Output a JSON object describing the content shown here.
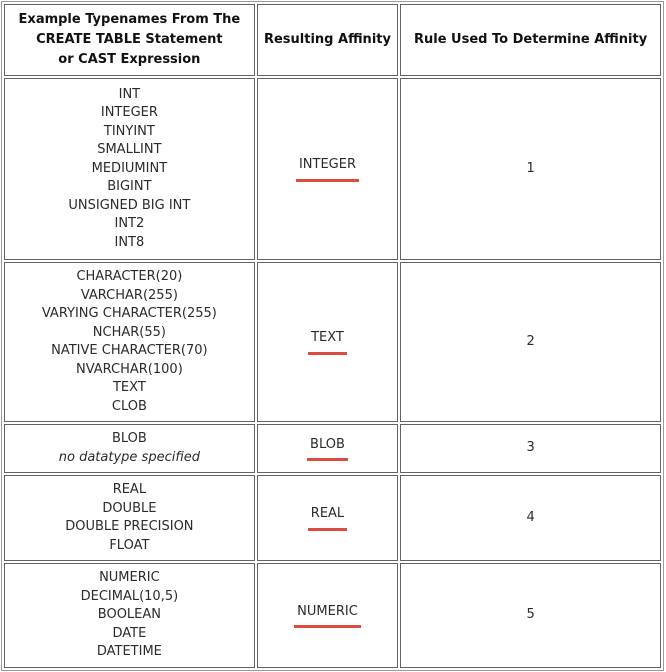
{
  "table": {
    "headers": [
      "Example Typenames From The\nCREATE TABLE Statement\nor CAST Expression",
      "Resulting Affinity",
      "Rule Used To Determine Affinity"
    ],
    "rows": [
      {
        "typenames": [
          "INT",
          "INTEGER",
          "TINYINT",
          "SMALLINT",
          "MEDIUMINT",
          "BIGINT",
          "UNSIGNED BIG INT",
          "INT2",
          "INT8"
        ],
        "note": null,
        "affinity": "INTEGER",
        "rule": "1"
      },
      {
        "typenames": [
          "CHARACTER(20)",
          "VARCHAR(255)",
          "VARYING CHARACTER(255)",
          "NCHAR(55)",
          "NATIVE CHARACTER(70)",
          "NVARCHAR(100)",
          "TEXT",
          "CLOB"
        ],
        "note": null,
        "affinity": "TEXT",
        "rule": "2"
      },
      {
        "typenames": [
          "BLOB"
        ],
        "note": "no datatype specified",
        "affinity": "BLOB",
        "rule": "3"
      },
      {
        "typenames": [
          "REAL",
          "DOUBLE",
          "DOUBLE PRECISION",
          "FLOAT"
        ],
        "note": null,
        "affinity": "REAL",
        "rule": "4"
      },
      {
        "typenames": [
          "NUMERIC",
          "DECIMAL(10,5)",
          "BOOLEAN",
          "DATE",
          "DATETIME"
        ],
        "note": null,
        "affinity": "NUMERIC",
        "rule": "5"
      }
    ],
    "colors": {
      "affinity_underline": "#dc4b40",
      "cell_border": "#636363",
      "outer_border": "#9c9c9c",
      "text": "#2b2b2b"
    }
  }
}
